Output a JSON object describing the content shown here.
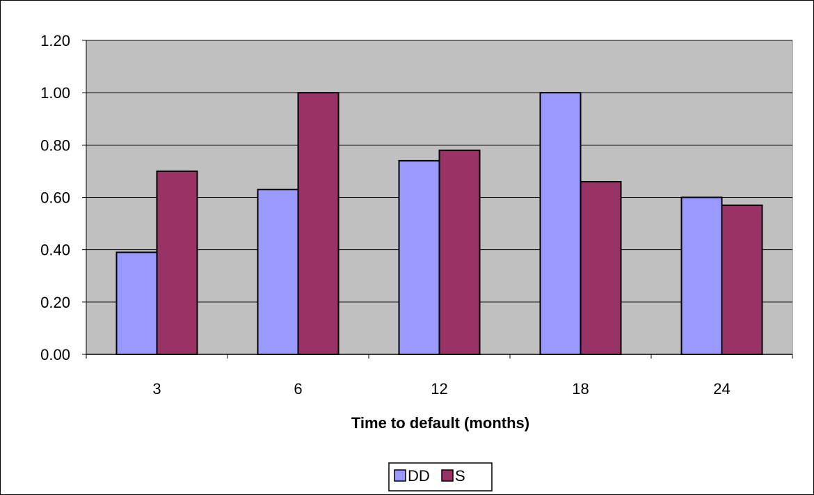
{
  "chart_data": {
    "type": "bar",
    "categories": [
      "3",
      "6",
      "12",
      "18",
      "24"
    ],
    "series": [
      {
        "name": "DD",
        "values": [
          0.39,
          0.63,
          0.74,
          1.0,
          0.6
        ]
      },
      {
        "name": "S",
        "values": [
          0.7,
          1.0,
          0.78,
          0.66,
          0.57
        ]
      }
    ],
    "title": "",
    "xlabel": "Time to default (months)",
    "ylabel": "",
    "ylim": [
      0,
      1.2
    ],
    "yticks": [
      "0.00",
      "0.20",
      "0.40",
      "0.60",
      "0.80",
      "1.00",
      "1.20"
    ],
    "grid": true,
    "legend_position": "bottom",
    "colors": {
      "plot_background": "#c0c0c0",
      "DD": "#9999ff",
      "S": "#993366",
      "gridline": "#000000"
    }
  }
}
